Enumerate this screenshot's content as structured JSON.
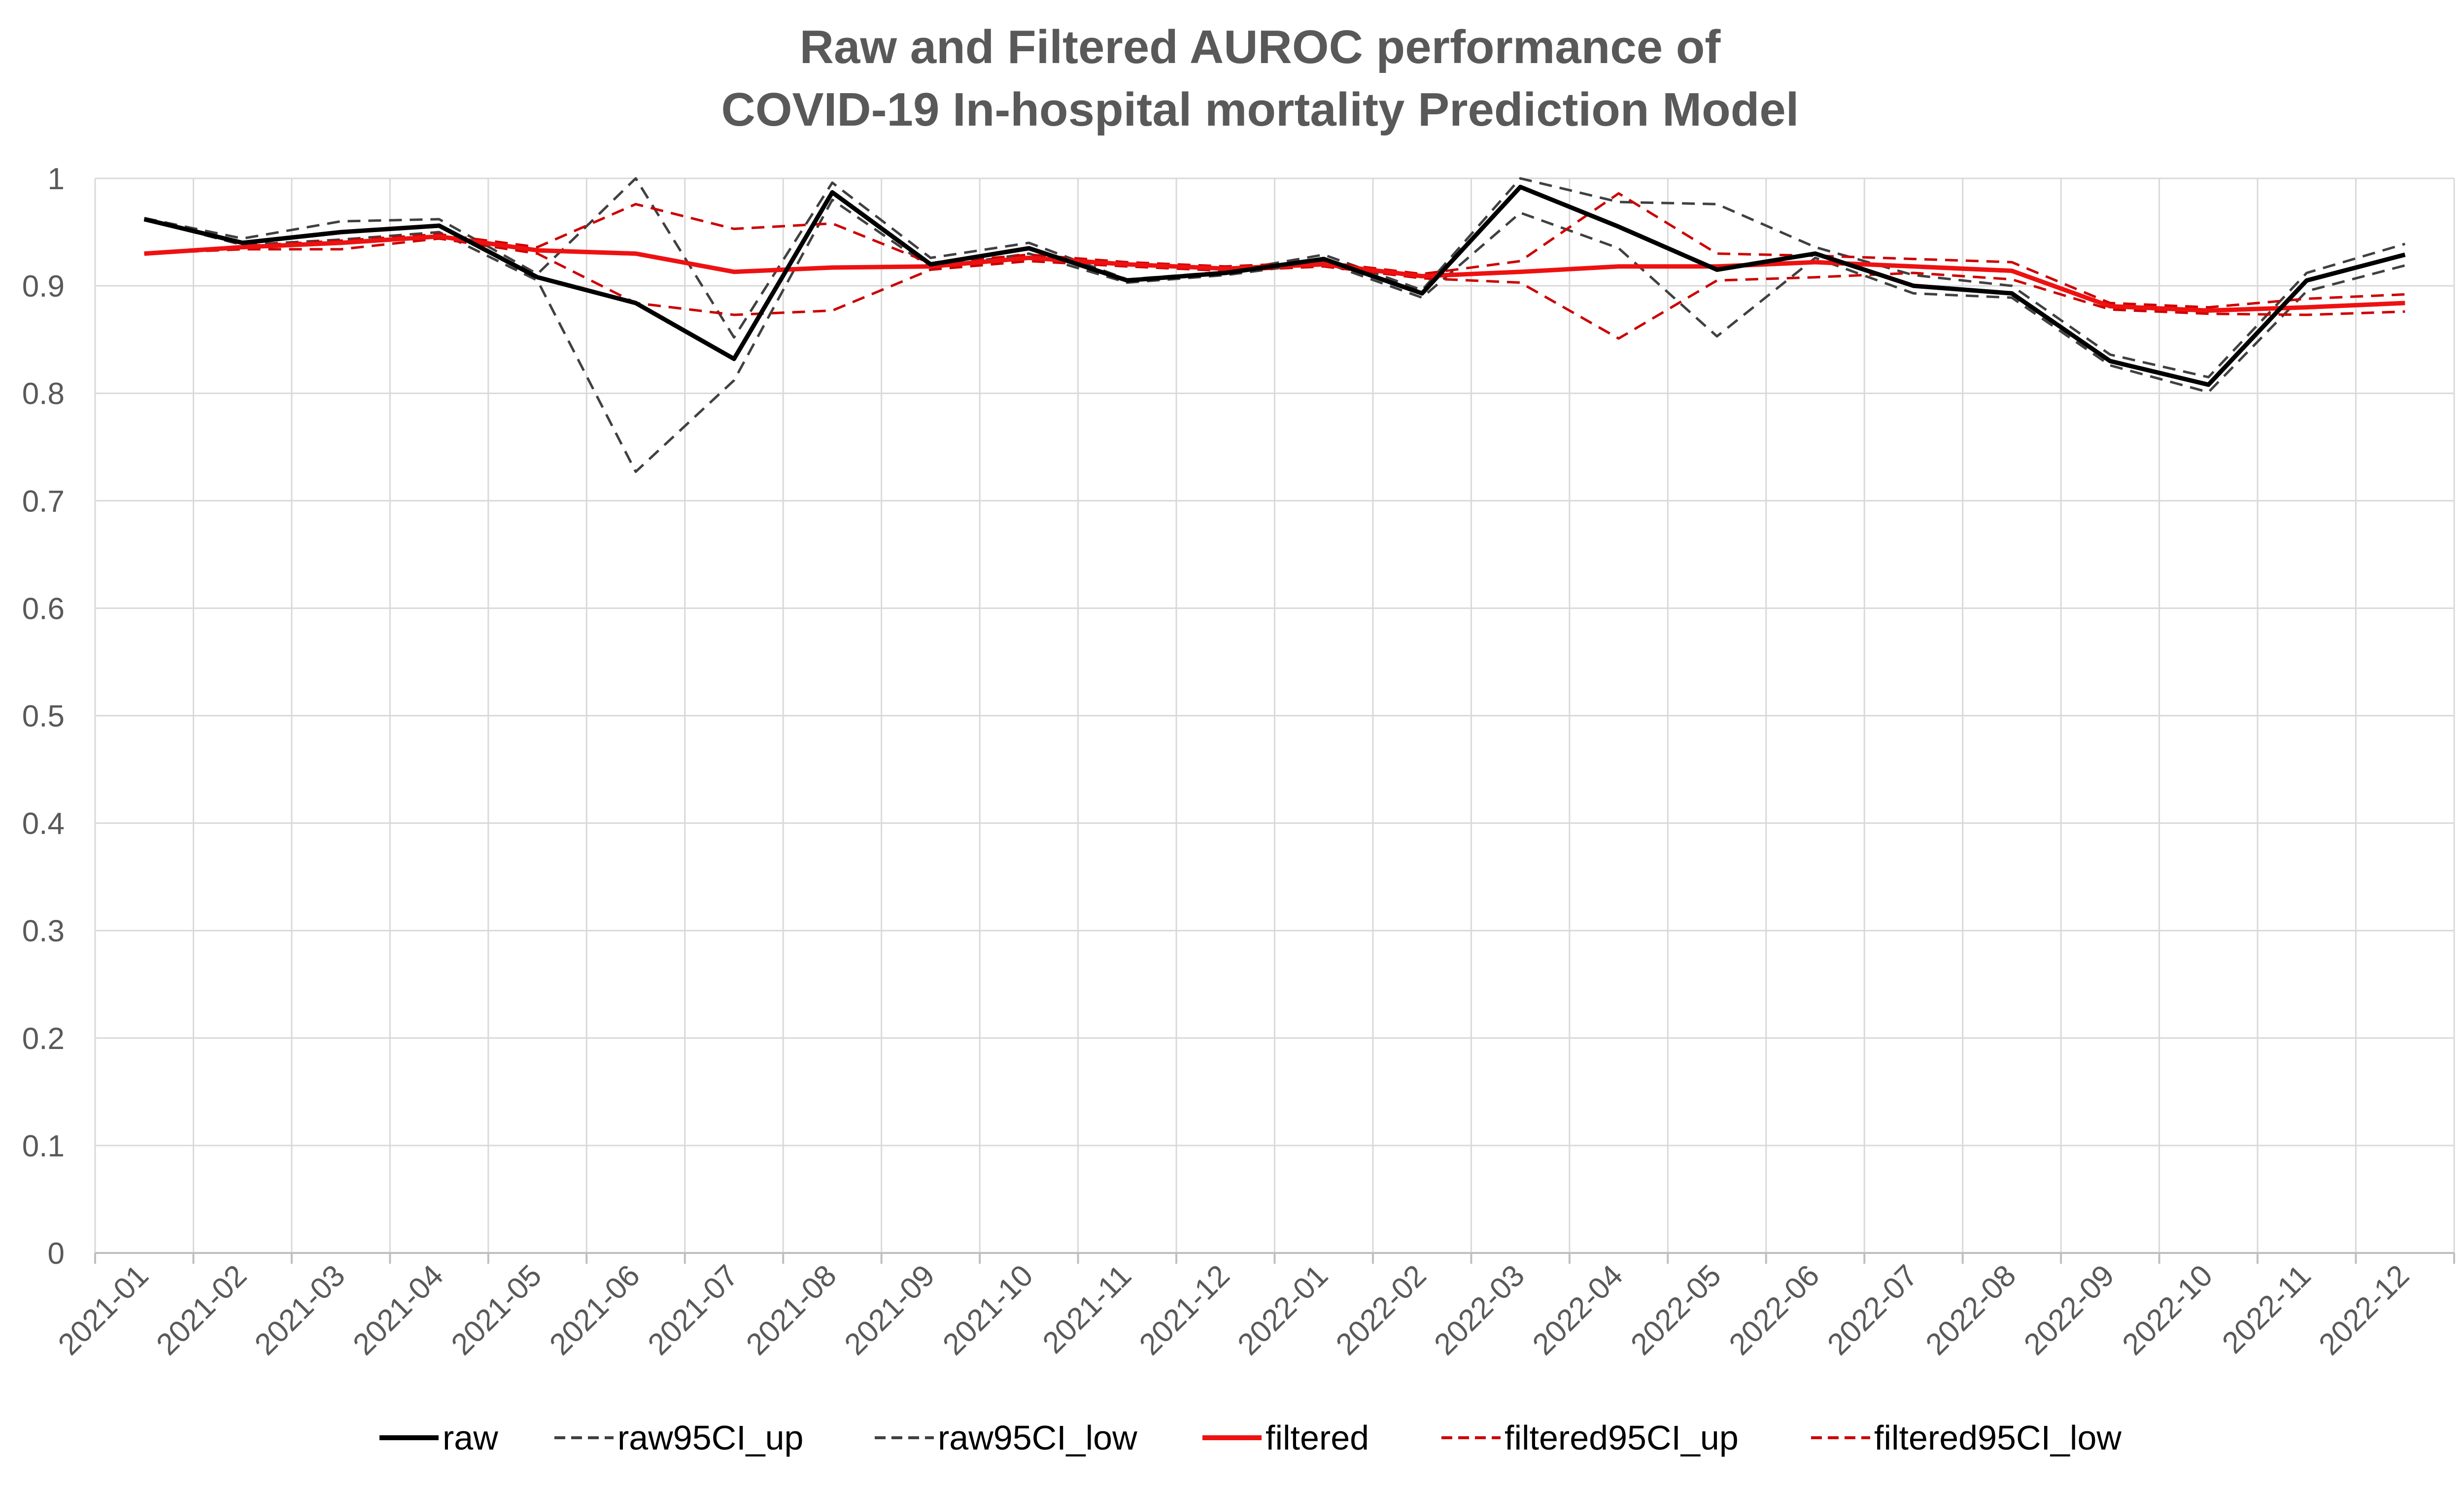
{
  "chart_data": {
    "type": "line",
    "title_line1": "Raw and Filtered AUROC performance of",
    "title_line2": "COVID-19 In-hospital mortality Prediction Model",
    "xlabel": "",
    "ylabel": "",
    "ylim": [
      0,
      1
    ],
    "yticks": [
      "0",
      "0.1",
      "0.2",
      "0.3",
      "0.4",
      "0.5",
      "0.6",
      "0.7",
      "0.8",
      "0.9",
      "1"
    ],
    "categories": [
      "2021-01",
      "2021-02",
      "2021-03",
      "2021-04",
      "2021-05",
      "2021-06",
      "2021-07",
      "2021-08",
      "2021-09",
      "2021-10",
      "2021-11",
      "2021-12",
      "2022-01",
      "2022-02",
      "2022-03",
      "2022-04",
      "2022-05",
      "2022-06",
      "2022-07",
      "2022-08",
      "2022-09",
      "2022-10",
      "2022-11",
      "2022-12"
    ],
    "grid": "vertical and horizontal",
    "legend_position": "bottom",
    "series": [
      {
        "name": "raw",
        "color": "#000000",
        "dash": "solid",
        "width": "thick",
        "values": [
          0.962,
          0.94,
          0.95,
          0.956,
          0.908,
          0.884,
          0.832,
          0.987,
          0.92,
          0.935,
          0.905,
          0.912,
          0.925,
          0.893,
          0.992,
          0.955,
          0.915,
          0.93,
          0.9,
          0.893,
          0.83,
          0.808,
          0.905,
          0.929
        ]
      },
      {
        "name": "raw95CI_up",
        "color": "#404040",
        "dash": "dashed",
        "width": "thin",
        "values": [
          0.963,
          0.944,
          0.96,
          0.962,
          0.911,
          1.0,
          0.852,
          0.996,
          0.926,
          0.94,
          0.906,
          0.913,
          0.929,
          0.896,
          1.0,
          0.978,
          0.976,
          0.936,
          0.91,
          0.9,
          0.836,
          0.815,
          0.912,
          0.939
        ]
      },
      {
        "name": "raw95CI_low",
        "color": "#404040",
        "dash": "dashed",
        "width": "thin",
        "values": [
          0.962,
          0.938,
          0.943,
          0.95,
          0.905,
          0.727,
          0.812,
          0.98,
          0.917,
          0.93,
          0.903,
          0.91,
          0.922,
          0.889,
          0.968,
          0.935,
          0.853,
          0.926,
          0.893,
          0.889,
          0.826,
          0.801,
          0.895,
          0.919
        ]
      },
      {
        "name": "filtered",
        "color": "#ee1111",
        "dash": "solid",
        "width": "thick",
        "values": [
          0.93,
          0.936,
          0.94,
          0.946,
          0.933,
          0.93,
          0.913,
          0.917,
          0.918,
          0.926,
          0.92,
          0.916,
          0.92,
          0.909,
          0.913,
          0.918,
          0.918,
          0.922,
          0.918,
          0.914,
          0.881,
          0.877,
          0.88,
          0.884
        ]
      },
      {
        "name": "filtered95CI_up",
        "color": "#cc0000",
        "dash": "dashed",
        "width": "thin",
        "values": [
          0.93,
          0.937,
          0.942,
          0.948,
          0.936,
          0.976,
          0.953,
          0.958,
          0.921,
          0.929,
          0.922,
          0.918,
          0.922,
          0.911,
          0.923,
          0.986,
          0.93,
          0.928,
          0.925,
          0.922,
          0.884,
          0.88,
          0.888,
          0.892
        ]
      },
      {
        "name": "filtered95CI_low",
        "color": "#cc0000",
        "dash": "dashed",
        "width": "thin",
        "values": [
          0.93,
          0.934,
          0.934,
          0.944,
          0.93,
          0.884,
          0.873,
          0.877,
          0.915,
          0.923,
          0.918,
          0.914,
          0.918,
          0.907,
          0.903,
          0.851,
          0.905,
          0.908,
          0.912,
          0.906,
          0.878,
          0.874,
          0.873,
          0.876
        ]
      }
    ]
  }
}
